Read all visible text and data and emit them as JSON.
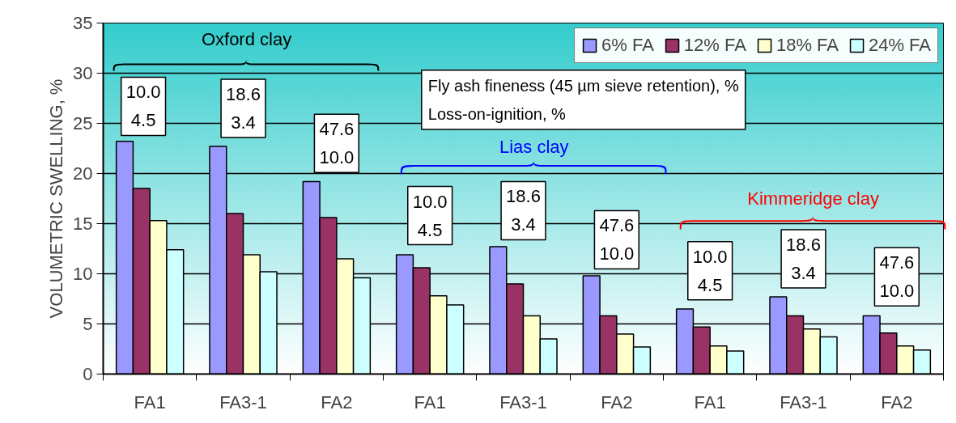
{
  "chart_data": {
    "type": "bar",
    "ylabel": "VOLUMETRIC SWELLING, %",
    "categories": [
      "FA1",
      "FA3-1",
      "FA2",
      "FA1",
      "FA3-1",
      "FA2",
      "FA1",
      "FA3-1",
      "FA2"
    ],
    "series": [
      {
        "name": "6% FA",
        "color": "#9999ff",
        "values": [
          23.2,
          22.7,
          19.2,
          11.9,
          12.7,
          9.8,
          6.5,
          7.7,
          5.8
        ]
      },
      {
        "name": "12% FA",
        "color": "#993366",
        "values": [
          18.5,
          16.0,
          15.6,
          10.6,
          9.0,
          5.8,
          4.7,
          5.8,
          4.1
        ]
      },
      {
        "name": "18% FA",
        "color": "#ffffcc",
        "values": [
          15.3,
          11.9,
          11.5,
          7.8,
          5.8,
          4.0,
          2.8,
          4.5,
          2.8
        ]
      },
      {
        "name": "24% FA",
        "color": "#ccffff",
        "values": [
          12.4,
          10.2,
          9.6,
          6.9,
          3.5,
          2.7,
          2.3,
          3.7,
          2.4
        ]
      }
    ],
    "ylim": [
      0,
      35
    ],
    "yticks": [
      0,
      5,
      10,
      15,
      20,
      25,
      30,
      35
    ],
    "grid": "y",
    "legend": "top right",
    "annotations": [
      "Oxford clay",
      "Lias clay",
      "Kimmeridge clay",
      "Fly ash fineness (45 µm sieve retention), %\nLoss-on-ignition, %",
      "10.0\n4.5",
      "18.6\n3.4",
      "47.6\n10.0",
      "10.0\n4.5",
      "18.6\n3.4",
      "47.6\n10.0",
      "10.0\n4.5",
      "18.6\n3.4",
      "47.6\n10.0"
    ]
  }
}
